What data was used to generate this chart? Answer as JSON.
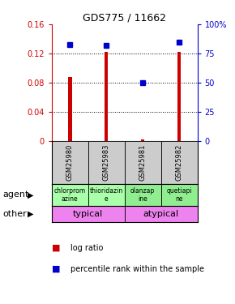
{
  "title": "GDS775 / 11662",
  "samples": [
    "GSM25980",
    "GSM25983",
    "GSM25981",
    "GSM25982"
  ],
  "log_ratio": [
    0.088,
    0.122,
    0.002,
    0.122
  ],
  "percentile": [
    83,
    82,
    50,
    85
  ],
  "ylim_left": [
    0,
    0.16
  ],
  "ylim_right": [
    0,
    100
  ],
  "yticks_left": [
    0,
    0.04,
    0.08,
    0.12,
    0.16
  ],
  "yticks_right": [
    0,
    25,
    50,
    75,
    100
  ],
  "ytick_labels_left": [
    "0",
    "0.04",
    "0.08",
    "0.12",
    "0.16"
  ],
  "ytick_labels_right": [
    "0",
    "25",
    "50",
    "75",
    "100%"
  ],
  "agent_labels": [
    "chlorprom\nazine",
    "thioridazin\ne",
    "olanzap\nine",
    "quetiapi\nne"
  ],
  "agent_colors": [
    "#aaffaa",
    "#aaffaa",
    "#90ee90",
    "#90ee90"
  ],
  "other_labels": [
    "typical",
    "atypical"
  ],
  "other_color": "#ee82ee",
  "bar_color": "#cc0000",
  "dot_color": "#0000cc",
  "sample_bg_color": "#cccccc",
  "left_axis_color": "#cc0000",
  "right_axis_color": "#0000cc",
  "legend_bar_label": "log ratio",
  "legend_pct_label": "percentile rank within the sample"
}
